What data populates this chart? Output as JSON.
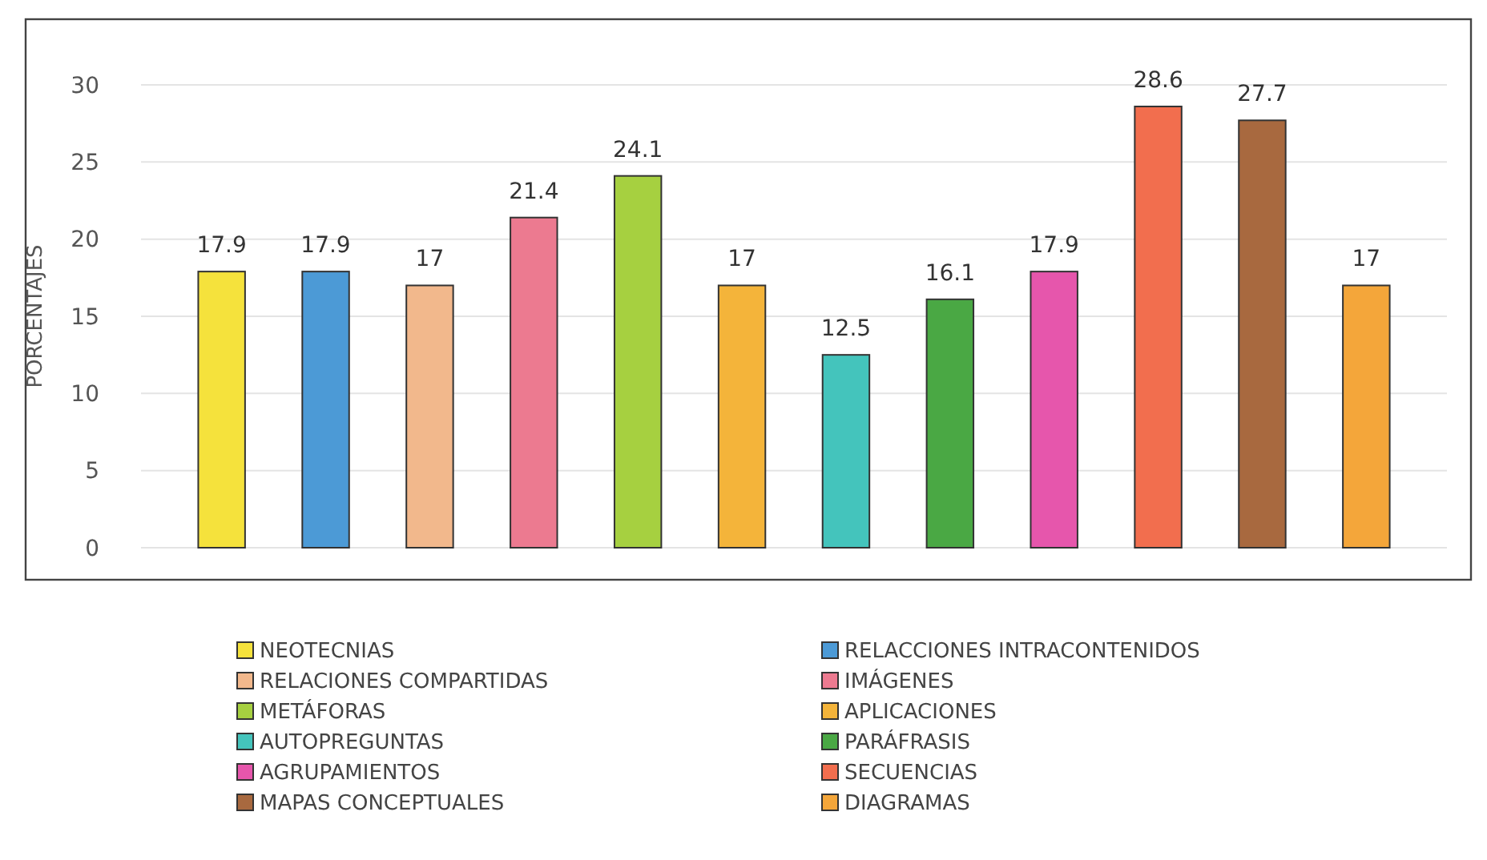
{
  "chart_data": {
    "type": "bar",
    "ylabel": "PORCENTAJES",
    "categories": [
      null
    ],
    "series": [
      {
        "name": "NEOTECNIAS",
        "color": "#f5e23c",
        "values": [
          17.9
        ]
      },
      {
        "name": "RELACCIONES INTRACONTENIDOS",
        "color": "#4c9ad6",
        "values": [
          17.9
        ]
      },
      {
        "name": "RELACIONES COMPARTIDAS",
        "color": "#f2b88c",
        "values": [
          17
        ]
      },
      {
        "name": "IMÁGENES",
        "color": "#ec7a90",
        "values": [
          21.4
        ]
      },
      {
        "name": "METÁFORAS",
        "color": "#a6d040",
        "values": [
          24.1
        ]
      },
      {
        "name": "APLICACIONES",
        "color": "#f4b43a",
        "values": [
          17
        ]
      },
      {
        "name": "AUTOPREGUNTAS",
        "color": "#44c4bc",
        "values": [
          12.5
        ]
      },
      {
        "name": "PARÁFRASIS",
        "color": "#4aa844",
        "values": [
          16.1
        ]
      },
      {
        "name": "AGRUPAMIENTOS",
        "color": "#e656ac",
        "values": [
          17.9
        ]
      },
      {
        "name": "SECUENCIAS",
        "color": "#f26e4e",
        "values": [
          28.6
        ]
      },
      {
        "name": "MAPAS CONCEPTUALES",
        "color": "#a8693f",
        "values": [
          27.7
        ]
      },
      {
        "name": "DIAGRAMAS",
        "color": "#f4a63a",
        "values": [
          17
        ]
      }
    ],
    "ylim": [
      0,
      30
    ],
    "yticks": [
      0,
      5,
      10,
      15,
      20,
      25,
      30
    ],
    "grid": "y",
    "data_labels": true,
    "legend": "bottom"
  }
}
